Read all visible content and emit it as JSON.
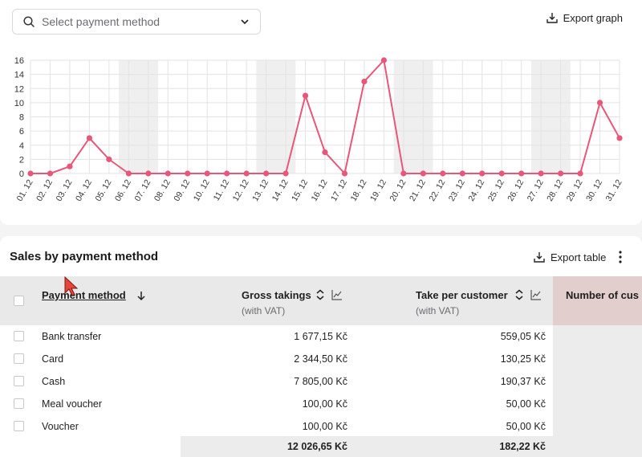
{
  "filter": {
    "placeholder": "Select payment method"
  },
  "export_graph_label": "Export graph",
  "chart_data": {
    "type": "line",
    "title": "",
    "x": [
      "01. 12",
      "02. 12",
      "03. 12",
      "04. 12",
      "05. 12",
      "06. 12",
      "07. 12",
      "08. 12",
      "09. 12",
      "10. 12",
      "11. 12",
      "12. 12",
      "13. 12",
      "14. 12",
      "15. 12",
      "16. 12",
      "17. 12",
      "18. 12",
      "19. 12",
      "20. 12",
      "21. 12",
      "22. 12",
      "23. 12",
      "24. 12",
      "25. 12",
      "26. 12",
      "27. 12",
      "28. 12",
      "29. 12",
      "30. 12",
      "31. 12"
    ],
    "series": [
      {
        "values": [
          0,
          0,
          1,
          5,
          2,
          0,
          0,
          0,
          0,
          0,
          0,
          0,
          0,
          0,
          11,
          3,
          0,
          13,
          16,
          0,
          0,
          0,
          0,
          0,
          0,
          0,
          0,
          0,
          0,
          10,
          5
        ]
      }
    ],
    "ylim": [
      0,
      16
    ],
    "yticks": [
      0,
      2,
      4,
      6,
      8,
      10,
      12,
      14,
      16
    ],
    "weekend_shading": [
      [
        "06. 12",
        "07. 12"
      ],
      [
        "13. 12",
        "14. 12"
      ],
      [
        "20. 12",
        "21. 12"
      ],
      [
        "27. 12",
        "28. 12"
      ]
    ],
    "line_color": "#e8577a",
    "grid": true
  },
  "table": {
    "title": "Sales by payment method",
    "export_label": "Export table",
    "columns": {
      "payment_method": "Payment method",
      "gross": "Gross takings",
      "gross_sub": "(with VAT)",
      "take": "Take per customer",
      "take_sub": "(with VAT)",
      "number": "Number of cus"
    },
    "rows": [
      {
        "method": "Bank transfer",
        "gross": "1 677,15 Kč",
        "take": "559,05 Kč"
      },
      {
        "method": "Card",
        "gross": "2 344,50 Kč",
        "take": "130,25 Kč"
      },
      {
        "method": "Cash",
        "gross": "7 805,00 Kč",
        "take": "190,37 Kč"
      },
      {
        "method": "Meal voucher",
        "gross": "100,00 Kč",
        "take": "50,00 Kč"
      },
      {
        "method": "Voucher",
        "gross": "100,00 Kč",
        "take": "50,00 Kč"
      }
    ],
    "totals": {
      "gross": "12 026,65 Kč",
      "take": "182,22 Kč"
    }
  }
}
